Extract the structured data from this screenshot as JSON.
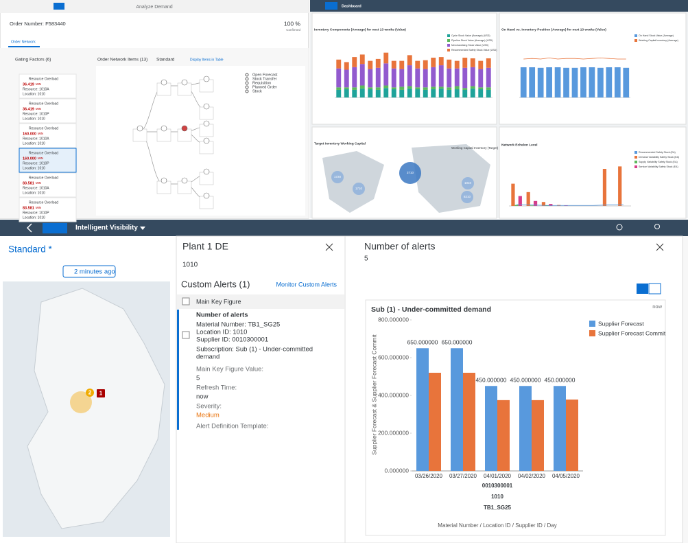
{
  "analyze_demand": {
    "title": "Analyze Demand",
    "order_number": "Order Number: F583440",
    "confirmed_pct": "100 %",
    "confirmed": "Confirmed",
    "tab": "Order Network",
    "gating_title": "Gating Factors (6)",
    "network_title": "Order Network Items (13)",
    "view": "Standard",
    "display_link": "Display Items in Table",
    "legend": [
      "Open Forecast",
      "Stock Transfer",
      "Requisition",
      "Planned Order",
      "Stock"
    ],
    "gating_items": [
      {
        "type": "Resource Overload",
        "value": "36.419",
        "unit": "MIN",
        "resource": "Resource: 1010A",
        "location": "Location: 1010"
      },
      {
        "type": "Resource Overload",
        "value": "36.419",
        "unit": "MIN",
        "resource": "Resource: 1010P",
        "location": "Location: 1010"
      },
      {
        "type": "Resource Overload",
        "value": "160.000",
        "unit": "MIN",
        "resource": "Resource: 1010A",
        "location": "Location: 1010"
      },
      {
        "type": "Resource Overload",
        "value": "160.000",
        "unit": "MIN",
        "resource": "Resource: 1010P",
        "location": "Location: 1010"
      },
      {
        "type": "Resource Overload",
        "value": "83.581",
        "unit": "MIN",
        "resource": "Resource: 1010A",
        "location": "Location: 1010"
      },
      {
        "type": "Resource Overload",
        "value": "83.581",
        "unit": "MIN",
        "resource": "Resource: 1010P",
        "location": "Location: 1010"
      }
    ]
  },
  "dashboard": {
    "title": "Dashboard",
    "charts": [
      {
        "type": "bar",
        "stacked": true,
        "title": "Inventory Components (Average) for next 13 weeks (Value)",
        "ylim": [
          0,
          100
        ],
        "series": [
          {
            "name": "Cycle Stock Value (Average) (USD)",
            "color": "#1fa39a",
            "values": [
              12,
              13,
              12,
              14,
              13,
              12,
              15,
              13,
              12,
              14,
              13,
              12,
              13,
              14,
              12,
              13,
              12,
              14,
              13,
              12
            ]
          },
          {
            "name": "Pipeline Stock Value (Average) (USD)",
            "color": "#5cb85c",
            "values": [
              4,
              3,
              4,
              5,
              3,
              4,
              4,
              3,
              5,
              4,
              3,
              4,
              4,
              3,
              4,
              5,
              3,
              4,
              3,
              4
            ]
          },
          {
            "name": "Merchandising Stock Value (USD)",
            "color": "#925ace",
            "values": [
              30,
              28,
              32,
              34,
              29,
              31,
              35,
              30,
              28,
              33,
              30,
              29,
              31,
              34,
              30,
              28,
              32,
              30,
              29,
              31
            ]
          },
          {
            "name": "Recommended Safety Stock Value (USD)",
            "color": "#e8743b",
            "values": [
              14,
              12,
              16,
              15,
              13,
              14,
              17,
              12,
              13,
              16,
              12,
              14,
              15,
              13,
              14,
              12,
              16,
              14,
              13,
              15
            ]
          }
        ]
      },
      {
        "type": "bar",
        "title": "On Hand vs. Inventory Position (Average) for next 13 weeks (Value)",
        "ylim": [
          0,
          100
        ],
        "series": [
          {
            "name": "On Hand Stock Value (Average)",
            "color": "#5899dd",
            "values": [
              55,
              55,
              54,
              55,
              55,
              54,
              54,
              55,
              55,
              54,
              55,
              55,
              54
            ]
          },
          {
            "name": "Working Capital Inventory (Average)",
            "color": "#e8743b",
            "kind": "line",
            "values": [
              70,
              71,
              70,
              72,
              70,
              71,
              71,
              70,
              71,
              72,
              71,
              70,
              70
            ]
          }
        ]
      },
      {
        "type": "map",
        "title": "Target Inventory Working Capital",
        "legend": "Working Capital Inventory (Target)",
        "bubbles": [
          "1720",
          "1710",
          "3710",
          "1010",
          "8210"
        ]
      },
      {
        "type": "bar",
        "title": "Network Echelon Level",
        "ylim": [
          0,
          100
        ],
        "series": [
          {
            "name": "Recommended Safety Stock (EA)",
            "color": "#5899dd",
            "kind": "line",
            "values": [
              3,
              2,
              1,
              1,
              1,
              1,
              2,
              2
            ]
          },
          {
            "name": "Demand Variability Safety Stock (EA)",
            "color": "#e8743b",
            "values": [
              45,
              28,
              8,
              2,
              0,
              0,
              75,
              80
            ]
          },
          {
            "name": "Supply Variability Safety Stock (EA)",
            "color": "#5cb85c",
            "values": [
              2,
              1,
              1,
              0,
              0,
              0,
              0,
              0
            ]
          },
          {
            "name": "Service Variability Safety Stock (EA)",
            "color": "#d63c8a",
            "values": [
              20,
              10,
              4,
              1,
              0,
              0,
              0,
              0
            ]
          }
        ]
      }
    ]
  },
  "intelligent_visibility": {
    "app": "Intelligent Visibility",
    "variant": "Standard *",
    "refresh": "2 minutes ago",
    "map_badges": [
      "2",
      "1"
    ],
    "plant": {
      "title": "Plant 1 DE",
      "id": "1010",
      "section": "Custom Alerts (1)",
      "monitor": "Monitor Custom Alerts",
      "column": "Main Key Figure",
      "alert_title": "Number of alerts",
      "lines": [
        "Material Number: TB1_SG25",
        "Location ID: 1010",
        "Supplier ID: 0010300001"
      ],
      "subscription": [
        "Subscription: Sub (1) - Under-committed",
        "demand"
      ],
      "fields": [
        {
          "label": "Main Key Figure Value:",
          "value": "5"
        },
        {
          "label": "Refresh Time:",
          "value": "now"
        },
        {
          "label": "Severity:",
          "value": "Medium"
        }
      ],
      "template": "Alert Definition Template:"
    },
    "alerts": {
      "title": "Number of alerts",
      "count": "5",
      "time": "now"
    }
  },
  "chart_data": {
    "type": "bar",
    "title": "Sub (1) - Under-committed demand",
    "categories": [
      "03/26/2020",
      "03/27/2020",
      "04/01/2020",
      "04/02/2020",
      "04/05/2020"
    ],
    "x_levels": [
      "0010300001",
      "1010",
      "TB1_SG25"
    ],
    "x_label": "Material Number / Location ID / Supplier ID / Day",
    "y_label": "Supplier Forecast & Supplier Forecast Commit",
    "ylim": [
      0,
      800
    ],
    "yticks": [
      {
        "value": 0,
        "label": "0.000000"
      },
      {
        "value": 200,
        "label": "200.000000"
      },
      {
        "value": 400,
        "label": "400.000000"
      },
      {
        "value": 600,
        "label": "600.000000"
      },
      {
        "value": 800,
        "label": "800.000000"
      }
    ],
    "grid": false,
    "legend": "right",
    "series": [
      {
        "name": "Supplier Forecast",
        "color": "#5899dd",
        "values": [
          650,
          650,
          450,
          450,
          450
        ],
        "value_labels": [
          "650.000000",
          "650.000000",
          "450.000000",
          "450.000000",
          "450.000000"
        ]
      },
      {
        "name": "Supplier Forecast Commit",
        "color": "#e8743b",
        "values": [
          520,
          520,
          375,
          375,
          378
        ]
      }
    ]
  }
}
